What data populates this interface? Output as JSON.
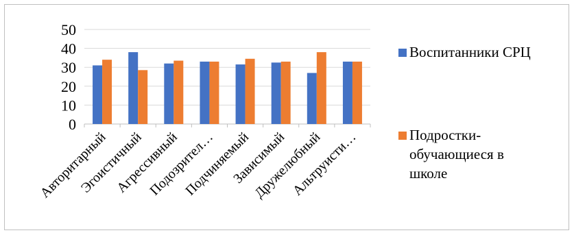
{
  "chart_data": {
    "type": "bar",
    "title": "",
    "xlabel": "",
    "ylabel": "",
    "ylim": [
      0,
      50
    ],
    "yticks": [
      0,
      10,
      20,
      30,
      40,
      50
    ],
    "grid": true,
    "legend_position": "right",
    "categories": [
      "Авторитарный",
      "Эгоистичный",
      "Агрессивный",
      "Подозрител…",
      "Подчиняемый",
      "Зависимый",
      "Дружелюбный",
      "Альтруисти…"
    ],
    "series": [
      {
        "name": "Воспитанники СРЦ",
        "color": "#4472c4",
        "values": [
          31,
          38,
          32,
          33,
          31.5,
          32.5,
          27,
          33
        ]
      },
      {
        "name": "Подростки-обучающиеся в школе",
        "color": "#ed7d31",
        "values": [
          34,
          28.5,
          33.5,
          33,
          34.5,
          33,
          38,
          33
        ]
      }
    ],
    "legend_lines": [
      [
        "Воспитанники СРЦ"
      ],
      [
        "Подростки-",
        "обучающиеся в",
        "школе"
      ]
    ]
  }
}
